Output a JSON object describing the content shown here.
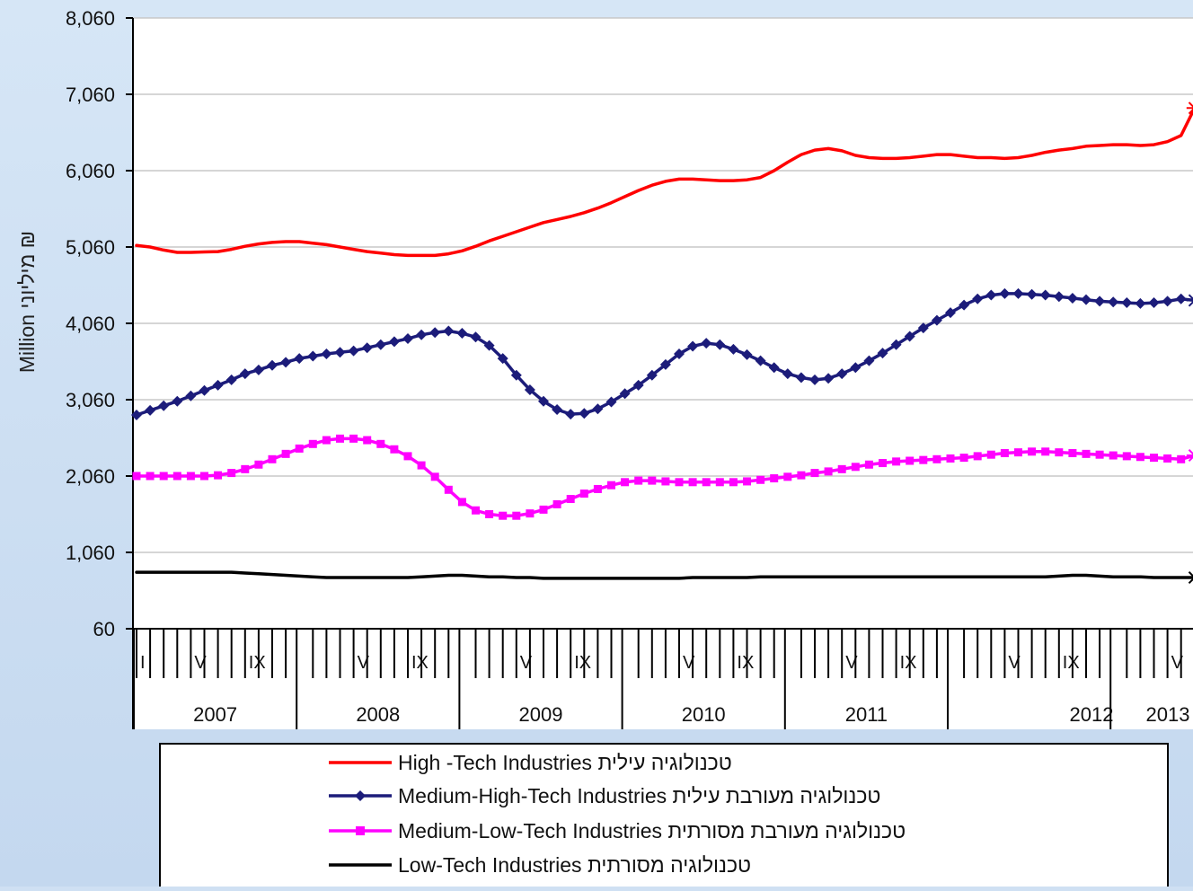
{
  "chart_data": {
    "type": "line",
    "ylabel": "Million מיליוני ₪",
    "yticks": [
      "8,060",
      "7,060",
      "6,060",
      "5,060",
      "4,060",
      "3,060",
      "2,060",
      "1,060",
      "60"
    ],
    "ylim": [
      60,
      8060
    ],
    "month_tick_labels": [
      "I",
      "V",
      "IX"
    ],
    "years": [
      "2007",
      "2008",
      "2009",
      "2010",
      "2011",
      "2012",
      "2013"
    ],
    "x_start": "2007-01",
    "x_months": 78,
    "grid": true,
    "legend_placement": "bottom",
    "series": [
      {
        "name": "High -Tech Industries  טכנולוגיה עילית",
        "color": "#ff0000",
        "marker": "none",
        "values": [
          5080,
          5060,
          5020,
          4990,
          4990,
          4995,
          5000,
          5030,
          5070,
          5100,
          5120,
          5130,
          5130,
          5110,
          5090,
          5060,
          5030,
          5000,
          4980,
          4960,
          4950,
          4950,
          4950,
          4970,
          5010,
          5070,
          5140,
          5200,
          5260,
          5320,
          5380,
          5420,
          5460,
          5510,
          5570,
          5640,
          5720,
          5800,
          5870,
          5920,
          5950,
          5950,
          5940,
          5930,
          5930,
          5940,
          5970,
          6060,
          6170,
          6270,
          6330,
          6350,
          6320,
          6260,
          6230,
          6220,
          6220,
          6230,
          6250,
          6270,
          6270,
          6250,
          6230,
          6230,
          6220,
          6230,
          6260,
          6300,
          6330,
          6350,
          6380,
          6390,
          6400,
          6400,
          6390,
          6400,
          6440,
          6520
        ]
      },
      {
        "name": "Medium-High-Tech Industries  טכנולוגיה מעורבת עילית",
        "color": "#1c1c7a",
        "marker": "diamond",
        "values": [
          2860,
          2920,
          2980,
          3040,
          3110,
          3180,
          3250,
          3320,
          3400,
          3450,
          3510,
          3550,
          3600,
          3630,
          3660,
          3680,
          3700,
          3740,
          3780,
          3820,
          3860,
          3910,
          3940,
          3960,
          3930,
          3880,
          3770,
          3600,
          3380,
          3190,
          3040,
          2930,
          2870,
          2880,
          2940,
          3030,
          3140,
          3250,
          3380,
          3520,
          3660,
          3760,
          3800,
          3780,
          3720,
          3650,
          3570,
          3480,
          3400,
          3350,
          3320,
          3340,
          3400,
          3480,
          3570,
          3670,
          3780,
          3890,
          4000,
          4100,
          4200,
          4300,
          4380,
          4430,
          4450,
          4450,
          4440,
          4430,
          4410,
          4390,
          4370,
          4350,
          4340,
          4330,
          4320,
          4330,
          4350,
          4380
        ]
      },
      {
        "name": "Medium-Low-Tech Industries  טכנולוגיה מעורבת מסורתית",
        "color": "#ff00ff",
        "marker": "square",
        "values": [
          2060,
          2060,
          2060,
          2060,
          2060,
          2060,
          2070,
          2100,
          2150,
          2210,
          2280,
          2350,
          2420,
          2480,
          2530,
          2550,
          2550,
          2530,
          2480,
          2410,
          2320,
          2200,
          2050,
          1880,
          1720,
          1610,
          1560,
          1540,
          1540,
          1570,
          1620,
          1690,
          1760,
          1830,
          1890,
          1940,
          1980,
          2000,
          2000,
          1990,
          1980,
          1980,
          1980,
          1980,
          1980,
          1990,
          2010,
          2030,
          2050,
          2070,
          2100,
          2120,
          2150,
          2180,
          2210,
          2230,
          2250,
          2260,
          2270,
          2280,
          2290,
          2300,
          2320,
          2340,
          2360,
          2370,
          2380,
          2380,
          2370,
          2360,
          2350,
          2340,
          2330,
          2320,
          2310,
          2300,
          2290,
          2280
        ]
      },
      {
        "name": "Low-Tech Industries   טכנולוגיה  מסורתית",
        "color": "#000000",
        "marker": "none",
        "values": [
          800,
          800,
          800,
          800,
          800,
          800,
          800,
          800,
          790,
          780,
          770,
          760,
          750,
          740,
          730,
          730,
          730,
          730,
          730,
          730,
          730,
          740,
          750,
          760,
          760,
          750,
          740,
          740,
          730,
          730,
          720,
          720,
          720,
          720,
          720,
          720,
          720,
          720,
          720,
          720,
          720,
          730,
          730,
          730,
          730,
          730,
          740,
          740,
          740,
          740,
          740,
          740,
          740,
          740,
          740,
          740,
          740,
          740,
          740,
          740,
          740,
          740,
          740,
          740,
          740,
          740,
          740,
          740,
          750,
          760,
          760,
          750,
          740,
          740,
          740,
          730,
          730,
          730
        ]
      }
    ],
    "estimate_tail": {
      "marker": "asterisk",
      "note_months": [
        72,
        73,
        74,
        75,
        76,
        77
      ],
      "high": [
        6880,
        6980,
        7060,
        7120
      ],
      "medium_high": [
        4360,
        4410,
        4470,
        4540
      ],
      "medium_low": [
        2330,
        2310,
        2290,
        2270
      ],
      "low": [
        730,
        730,
        730,
        730
      ]
    }
  }
}
